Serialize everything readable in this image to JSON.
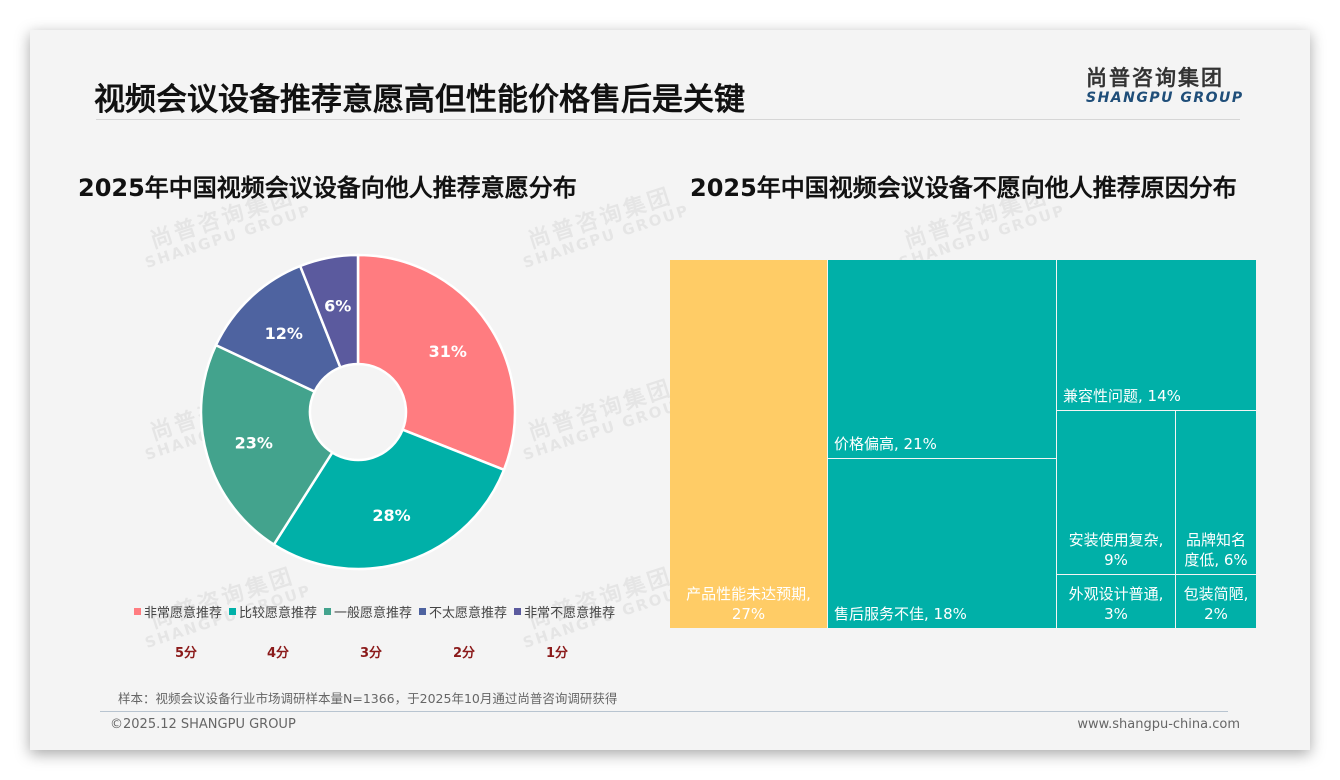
{
  "header": {
    "title": "视频会议设备推荐意愿高但性能价格售后是关键",
    "logo_cn": "尚普咨询集团",
    "logo_en": "SHANGPU GROUP"
  },
  "watermark": {
    "cn": "尚普咨询集团",
    "en": "SHANGPU GROUP"
  },
  "left_chart": {
    "title": "2025年中国视频会议设备向他人推荐意愿分布",
    "legend": [
      {
        "label": "非常愿意推荐",
        "color": "#ff7c80",
        "score": "5分"
      },
      {
        "label": "比较愿意推荐",
        "color": "#00b0a8",
        "score": "4分"
      },
      {
        "label": "一般愿意推荐",
        "color": "#43a38d",
        "score": "3分"
      },
      {
        "label": "不太愿意推荐",
        "color": "#4e63a0",
        "score": "2分"
      },
      {
        "label": "非常不愿意推荐",
        "color": "#5b5a9e",
        "score": "1分"
      }
    ]
  },
  "right_chart": {
    "title": "2025年中国视频会议设备不愿向他人推荐原因分布",
    "tiles": [
      {
        "label": "产品性能未达预期,",
        "value": "27%",
        "color": "#ffcc66"
      },
      {
        "label": "价格偏高, 21%",
        "color": "#00b0a8"
      },
      {
        "label": "售后服务不佳, 18%",
        "color": "#00b0a8"
      },
      {
        "label": "兼容性问题, 14%",
        "color": "#00b0a8"
      },
      {
        "label": "安装使用复杂,",
        "value": "9%",
        "color": "#00b0a8"
      },
      {
        "label": "品牌知名",
        "value": "度低, 6%",
        "color": "#00b0a8"
      },
      {
        "label": "外观设计普通,",
        "value": "3%",
        "color": "#00b0a8"
      },
      {
        "label": "包装简陋,",
        "value": "2%",
        "color": "#00b0a8"
      }
    ]
  },
  "chart_data": [
    {
      "type": "pie",
      "title": "2025年中国视频会议设备向他人推荐意愿分布",
      "categories": [
        "非常愿意推荐",
        "比较愿意推荐",
        "一般愿意推荐",
        "不太愿意推荐",
        "非常不愿意推荐"
      ],
      "scores": [
        "5分",
        "4分",
        "3分",
        "2分",
        "1分"
      ],
      "values": [
        31,
        28,
        23,
        12,
        6
      ],
      "labels": [
        "31%",
        "28%",
        "23%",
        "12%",
        "6%"
      ],
      "colors": [
        "#ff7c80",
        "#00b0a8",
        "#43a38d",
        "#4e63a0",
        "#5b5a9e"
      ],
      "donut": true,
      "legend_position": "bottom"
    },
    {
      "type": "treemap",
      "title": "2025年中国视频会议设备不愿向他人推荐原因分布",
      "categories": [
        "产品性能未达预期",
        "价格偏高",
        "售后服务不佳",
        "兼容性问题",
        "安装使用复杂",
        "品牌知名度低",
        "外观设计普通",
        "包装简陋"
      ],
      "values": [
        27,
        21,
        18,
        14,
        9,
        6,
        3,
        2
      ],
      "unit": "%"
    }
  ],
  "footer": {
    "note": "样本：视频会议设备行业市场调研样本量N=1366，于2025年10月通过尚普咨询调研获得",
    "copyright": "©2025.12 SHANGPU GROUP",
    "website": "www.shangpu-china.com"
  }
}
